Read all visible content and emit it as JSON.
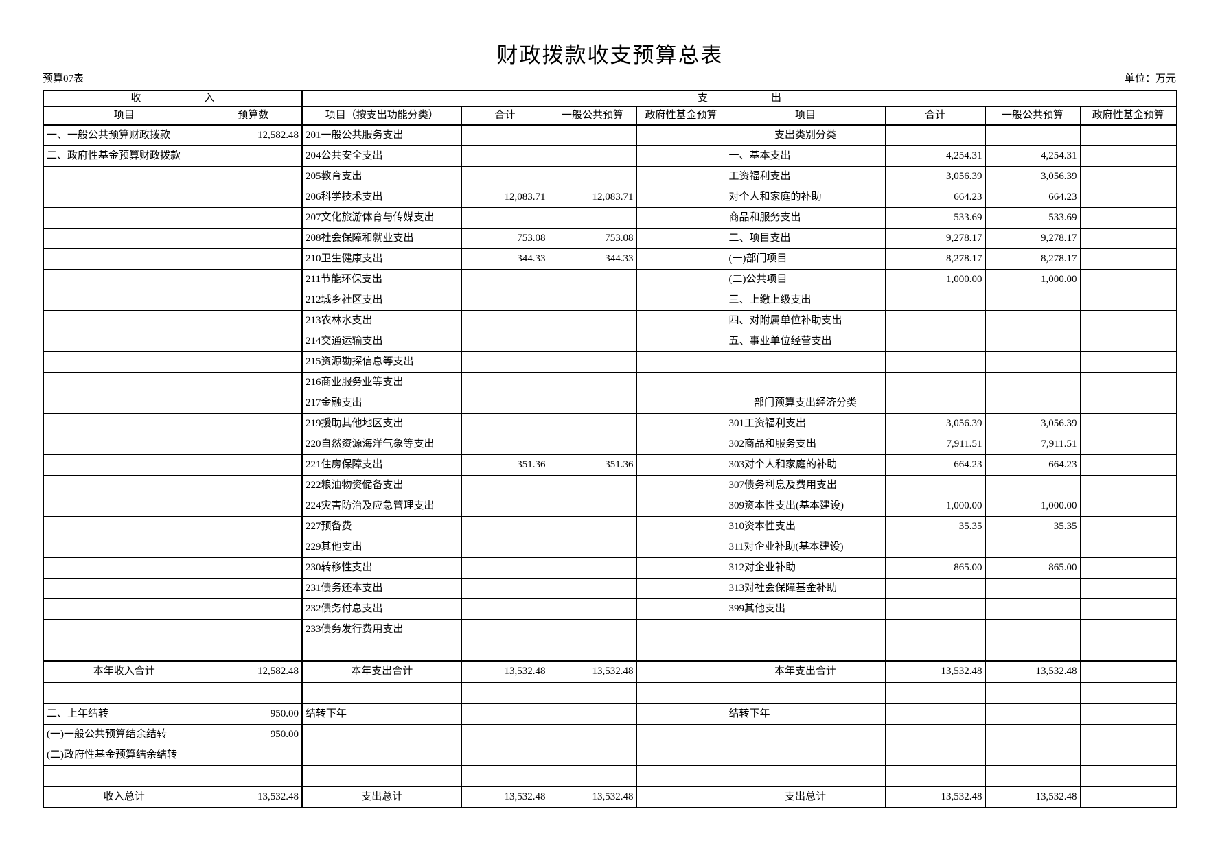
{
  "page": {
    "title": "财政拨款收支预算总表",
    "sheet_label": "预算07表",
    "unit_label": "单位：万元"
  },
  "table": {
    "income_group_header": "收入",
    "expenditure_group_header": "支出",
    "columns": [
      "项目",
      "预算数",
      "项目（按支出功能分类）",
      "合计",
      "一般公共预算",
      "政府性基金预算",
      "项目",
      "合计",
      "一般公共预算",
      "政府性基金预算"
    ],
    "rows": [
      [
        "一、一般公共预算财政拨款",
        "12,582.48",
        "201一般公共服务支出",
        "",
        "",
        "",
        {
          "t": "支出类别分类",
          "cls": "ac"
        },
        "",
        "",
        ""
      ],
      [
        "二、政府性基金预算财政拨款",
        "",
        "204公共安全支出",
        "",
        "",
        "",
        "一、基本支出",
        "4,254.31",
        "4,254.31",
        ""
      ],
      [
        "",
        "",
        "205教育支出",
        "",
        "",
        "",
        {
          "t": "工资福利支出",
          "cls": "i2"
        },
        "3,056.39",
        "3,056.39",
        ""
      ],
      [
        "",
        "",
        "206科学技术支出",
        "12,083.71",
        "12,083.71",
        "",
        {
          "t": "对个人和家庭的补助",
          "cls": "i2"
        },
        "664.23",
        "664.23",
        ""
      ],
      [
        "",
        "",
        "207文化旅游体育与传媒支出",
        "",
        "",
        "",
        {
          "t": "商品和服务支出",
          "cls": "i2"
        },
        "533.69",
        "533.69",
        ""
      ],
      [
        "",
        "",
        "208社会保障和就业支出",
        "753.08",
        "753.08",
        "",
        "二、项目支出",
        "9,278.17",
        "9,278.17",
        ""
      ],
      [
        "",
        "",
        "210卫生健康支出",
        "344.33",
        "344.33",
        "",
        {
          "t": "(一)部门项目",
          "cls": "i1"
        },
        "8,278.17",
        "8,278.17",
        ""
      ],
      [
        "",
        "",
        "211节能环保支出",
        "",
        "",
        "",
        {
          "t": "(二)公共项目",
          "cls": "i1"
        },
        "1,000.00",
        "1,000.00",
        ""
      ],
      [
        "",
        "",
        "212城乡社区支出",
        "",
        "",
        "",
        "三、上缴上级支出",
        "",
        "",
        ""
      ],
      [
        "",
        "",
        "213农林水支出",
        "",
        "",
        "",
        "四、对附属单位补助支出",
        "",
        "",
        ""
      ],
      [
        "",
        "",
        "214交通运输支出",
        "",
        "",
        "",
        "五、事业单位经营支出",
        "",
        "",
        ""
      ],
      [
        "",
        "",
        "215资源勘探信息等支出",
        "",
        "",
        "",
        "",
        "",
        "",
        ""
      ],
      [
        "",
        "",
        "216商业服务业等支出",
        "",
        "",
        "",
        "",
        "",
        "",
        ""
      ],
      [
        "",
        "",
        "217金融支出",
        "",
        "",
        "",
        {
          "t": "部门预算支出经济分类",
          "cls": "ac"
        },
        "",
        "",
        ""
      ],
      [
        "",
        "",
        "219援助其他地区支出",
        "",
        "",
        "",
        "301工资福利支出",
        "3,056.39",
        "3,056.39",
        ""
      ],
      [
        "",
        "",
        "220自然资源海洋气象等支出",
        "",
        "",
        "",
        "302商品和服务支出",
        "7,911.51",
        "7,911.51",
        ""
      ],
      [
        "",
        "",
        "221住房保障支出",
        "351.36",
        "351.36",
        "",
        "303对个人和家庭的补助",
        "664.23",
        "664.23",
        ""
      ],
      [
        "",
        "",
        "222粮油物资储备支出",
        "",
        "",
        "",
        "307债务利息及费用支出",
        "",
        "",
        ""
      ],
      [
        "",
        "",
        "224灾害防治及应急管理支出",
        "",
        "",
        "",
        "309资本性支出(基本建设)",
        "1,000.00",
        "1,000.00",
        ""
      ],
      [
        "",
        "",
        "227预备费",
        "",
        "",
        "",
        "310资本性支出",
        "35.35",
        "35.35",
        ""
      ],
      [
        "",
        "",
        "229其他支出",
        "",
        "",
        "",
        "311对企业补助(基本建设)",
        "",
        "",
        ""
      ],
      [
        "",
        "",
        "230转移性支出",
        "",
        "",
        "",
        "312对企业补助",
        "865.00",
        "865.00",
        ""
      ],
      [
        "",
        "",
        "231债务还本支出",
        "",
        "",
        "",
        "313对社会保障基金补助",
        "",
        "",
        ""
      ],
      [
        "",
        "",
        "232债务付息支出",
        "",
        "",
        "",
        "399其他支出",
        "",
        "",
        ""
      ],
      [
        "",
        "",
        "233债务发行费用支出",
        "",
        "",
        "",
        "",
        "",
        "",
        ""
      ],
      [
        "",
        "",
        "",
        "",
        "",
        "",
        "",
        "",
        "",
        ""
      ],
      [
        {
          "t": "本年收入合计",
          "cls": "ac"
        },
        "12,582.48",
        {
          "t": "本年支出合计",
          "cls": "ac"
        },
        "13,532.48",
        "13,532.48",
        "",
        {
          "t": "本年支出合计",
          "cls": "ac"
        },
        "13,532.48",
        "13,532.48",
        ""
      ],
      [
        "",
        "",
        "",
        "",
        "",
        "",
        "",
        "",
        "",
        ""
      ],
      [
        "二、上年结转",
        "950.00",
        "结转下年",
        "",
        "",
        "",
        "结转下年",
        "",
        "",
        ""
      ],
      [
        "(一)一般公共预算结余结转",
        "950.00",
        "",
        "",
        "",
        "",
        "",
        "",
        "",
        ""
      ],
      [
        "(二)政府性基金预算结余结转",
        "",
        "",
        "",
        "",
        "",
        "",
        "",
        "",
        ""
      ],
      [
        "",
        "",
        "",
        "",
        "",
        "",
        "",
        "",
        "",
        ""
      ],
      [
        {
          "t": "收入总计",
          "cls": "ac"
        },
        "13,532.48",
        {
          "t": "支出总计",
          "cls": "ac"
        },
        "13,532.48",
        "13,532.48",
        "",
        {
          "t": "支出总计",
          "cls": "ac"
        },
        "13,532.48",
        "13,532.48",
        ""
      ]
    ]
  }
}
